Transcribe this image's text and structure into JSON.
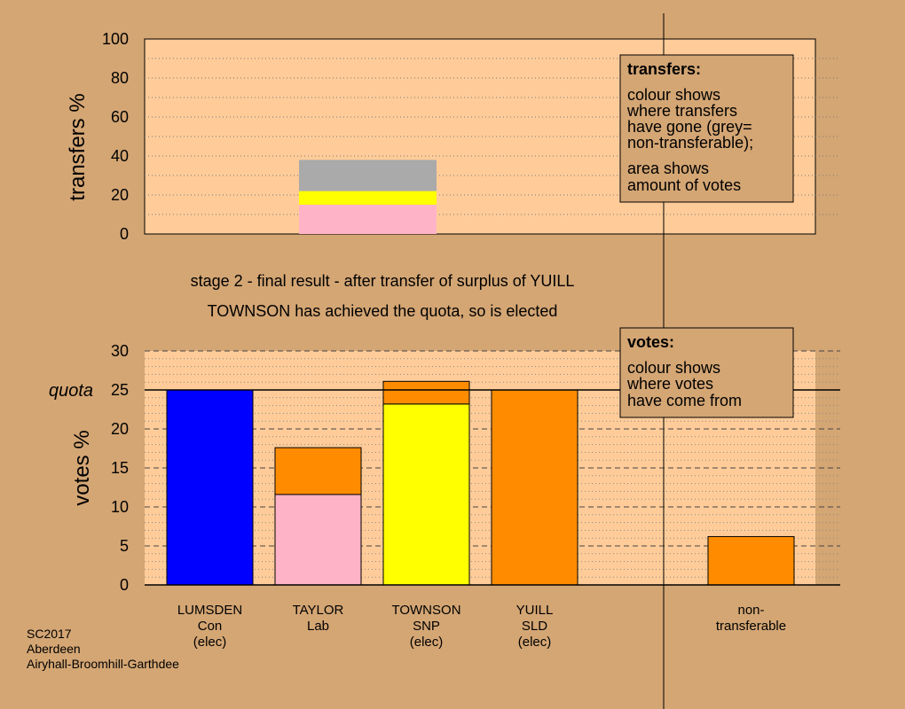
{
  "chart_data": [
    {
      "type": "bar",
      "panel": "transfers",
      "ylabel": "transfers %",
      "ylim": [
        0,
        100
      ],
      "yticks": [
        0,
        20,
        40,
        60,
        80,
        100
      ],
      "bars": [
        {
          "position": 4,
          "segments": [
            {
              "value": 15,
              "color": "#ffb3c6"
            },
            {
              "value": 7,
              "color": "#ffff00"
            },
            {
              "value": 16,
              "color": "#aaaaaa"
            }
          ]
        }
      ],
      "note": {
        "heading": "transfers:",
        "lines": [
          "colour shows",
          "where transfers",
          "have gone (grey=",
          "non-transferable);",
          "area shows",
          "amount of votes"
        ]
      }
    },
    {
      "type": "bar",
      "panel": "votes",
      "ylabel": "votes %",
      "ylim": [
        0,
        30
      ],
      "yticks": [
        0,
        5,
        10,
        15,
        20,
        25,
        30
      ],
      "quota": 25,
      "quota_label": "quota",
      "categories": [
        {
          "lines": [
            "LUMSDEN",
            "Con",
            "(elec)"
          ]
        },
        {
          "lines": [
            "TAYLOR",
            "Lab"
          ]
        },
        {
          "lines": [
            "TOWNSON",
            "SNP",
            "(elec)"
          ]
        },
        {
          "lines": [
            "YUILL",
            "SLD",
            "(elec)"
          ]
        },
        {
          "lines": [
            "non-",
            "transferable"
          ]
        }
      ],
      "bars": [
        {
          "category": 0,
          "segments": [
            {
              "value": 25.0,
              "color": "#0000ff"
            }
          ]
        },
        {
          "category": 1,
          "segments": [
            {
              "value": 11.6,
              "color": "#ffb3c6"
            },
            {
              "value": 6.0,
              "color": "#ff8c00"
            }
          ]
        },
        {
          "category": 2,
          "segments": [
            {
              "value": 23.2,
              "color": "#ffff00"
            },
            {
              "value": 2.9,
              "color": "#ff8c00"
            }
          ]
        },
        {
          "category": 3,
          "segments": [
            {
              "value": 25.0,
              "color": "#ff8c00"
            }
          ]
        },
        {
          "category": 4,
          "segments": [
            {
              "value": 6.2,
              "color": "#ff8c00"
            }
          ]
        }
      ],
      "note": {
        "heading": "votes:",
        "lines": [
          "colour shows",
          "where votes",
          "have come from"
        ]
      }
    }
  ],
  "title_lines": [
    "stage 2 - final result - after transfer of surplus of YUILL",
    "TOWNSON has achieved the quota, so is elected"
  ],
  "footer_lines": [
    "SC2017",
    "Aberdeen",
    "Airyhall-Broomhill-Garthdee"
  ],
  "colors": {
    "background": "#d4a674",
    "plot_background": "#ffcc99"
  }
}
